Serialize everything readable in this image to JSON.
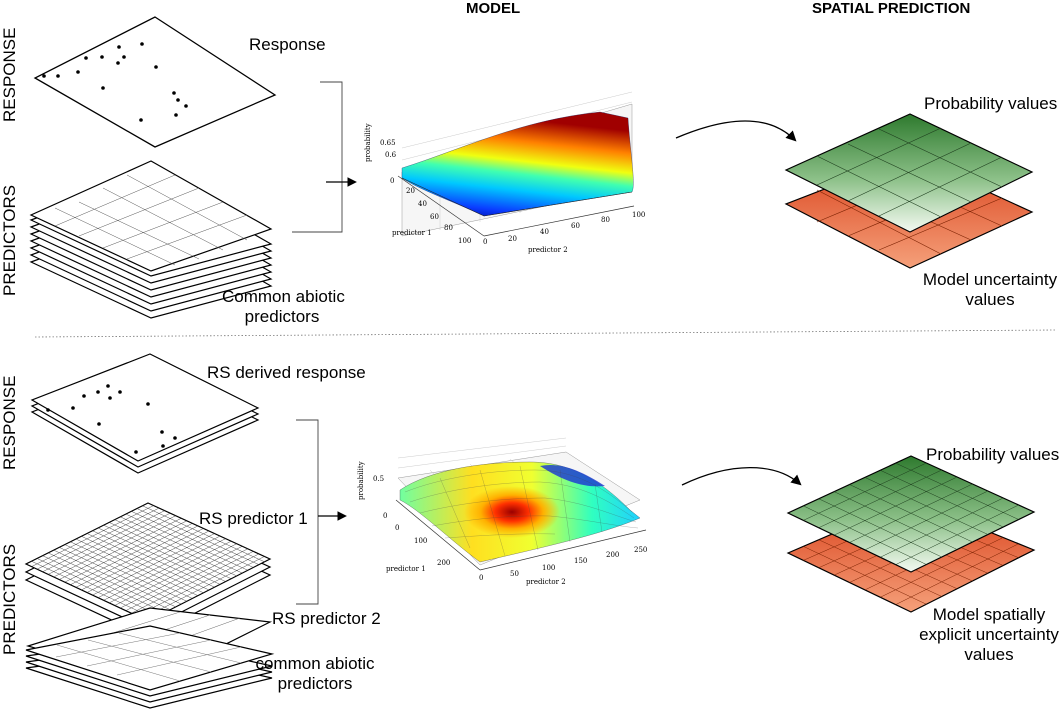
{
  "headers": {
    "model": "MODEL",
    "spatial": "SPATIAL PREDICTION"
  },
  "side_labels": {
    "response": "RESPONSE",
    "predictors": "PREDICTORS"
  },
  "top": {
    "response_label": "Response",
    "predictors_label_1": "Common abiotic",
    "predictors_label_2": "predictors",
    "output_top": "Probability values",
    "output_bottom_1": "Model uncertainty",
    "output_bottom_2": "values",
    "plot": {
      "zlabel": "probability",
      "xlabel": "predictor 1",
      "ylabel": "predictor 2",
      "zticks": [
        "0.65",
        "0.6",
        "0"
      ],
      "p1_ticks": [
        "0",
        "20",
        "40",
        "60",
        "80",
        "100"
      ],
      "p2_ticks": [
        "0",
        "20",
        "40",
        "60",
        "80",
        "100"
      ]
    }
  },
  "bottom": {
    "response_label": "RS derived response",
    "pred1_label": "RS predictor 1",
    "pred2_label": "RS predictor 2",
    "abiotic_label_1": "common abiotic",
    "abiotic_label_2": "predictors",
    "output_top": "Probability values",
    "output_bottom_1": "Model spatially",
    "output_bottom_2": "explicit uncertainty",
    "output_bottom_3": "values",
    "plot": {
      "zlabel": "probability",
      "xlabel": "predictor 1",
      "ylabel": "predictor 2",
      "zticks": [
        "0.5",
        "0"
      ],
      "p1_ticks": [
        "0",
        "100",
        "200"
      ],
      "p2_ticks": [
        "0",
        "50",
        "100",
        "150",
        "200",
        "250"
      ]
    }
  },
  "colors": {
    "prob_green_dark": "#2e7a2e",
    "prob_green_light": "#f4faf2",
    "uncert_red_dark": "#d9401a",
    "uncert_red_light": "#f5a07a"
  }
}
